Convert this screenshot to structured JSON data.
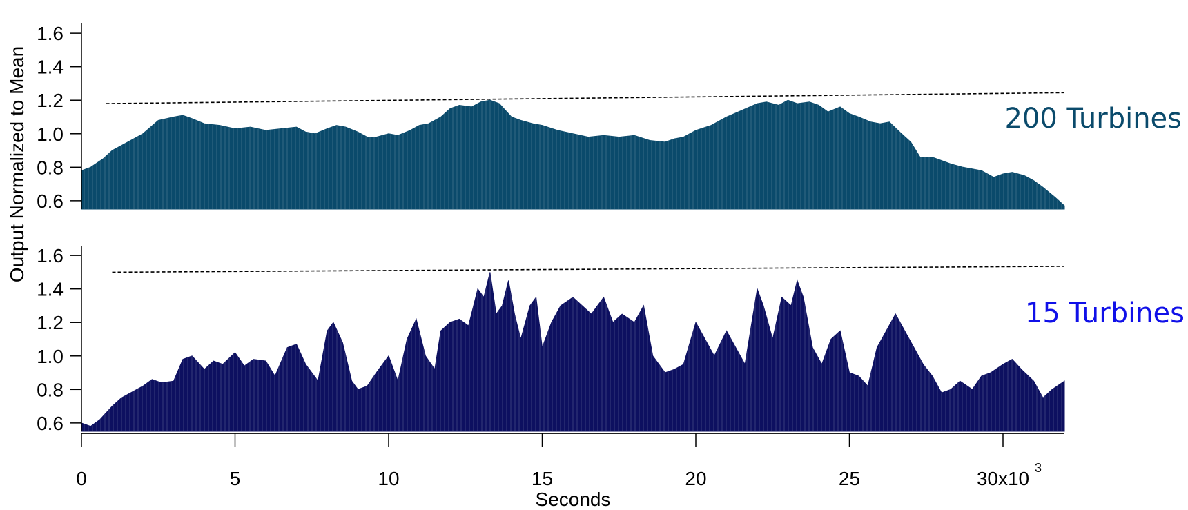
{
  "chart_data": {
    "type": "area",
    "xlabel": "Seconds",
    "ylabel": "Output Normalized to Mean",
    "xlim": [
      0,
      32000
    ],
    "x_ticks": [
      0,
      5000,
      10000,
      15000,
      20000,
      25000,
      30000
    ],
    "x_tick_labels": [
      "0",
      "5",
      "10",
      "15",
      "20",
      "25",
      "30x10"
    ],
    "x_tick_exponent": "3",
    "panels": [
      {
        "label": "200 Turbines",
        "color": "#0a4a6b",
        "label_color": "#0a4a6b",
        "ylim": [
          0.55,
          1.65
        ],
        "y_ticks": [
          0.6,
          0.8,
          1.0,
          1.2,
          1.4,
          1.6
        ],
        "y_tick_labels": [
          "0.6",
          "0.8",
          "1.0",
          "1.2",
          "1.4",
          "1.6"
        ],
        "reference_line": {
          "x": [
            800,
            32000
          ],
          "y": [
            1.18,
            1.245
          ]
        },
        "series": {
          "x": [
            0,
            300,
            700,
            1000,
            1500,
            2000,
            2500,
            3000,
            3300,
            3600,
            4000,
            4500,
            5000,
            5500,
            6000,
            6500,
            7000,
            7300,
            7600,
            8000,
            8300,
            8600,
            9000,
            9300,
            9600,
            10000,
            10300,
            10700,
            11000,
            11300,
            11700,
            12000,
            12300,
            12700,
            13000,
            13300,
            13600,
            14000,
            14300,
            14700,
            15000,
            15500,
            16000,
            16500,
            17000,
            17500,
            18000,
            18500,
            19000,
            19300,
            19600,
            20000,
            20500,
            21000,
            21500,
            22000,
            22300,
            22700,
            23000,
            23300,
            23700,
            24000,
            24300,
            24700,
            25000,
            25300,
            25700,
            26000,
            26300,
            26700,
            27000,
            27300,
            27700,
            28000,
            28300,
            28700,
            29000,
            29300,
            29700,
            30000,
            30300,
            30700,
            31000,
            31300,
            31700,
            32000
          ],
          "y": [
            0.78,
            0.8,
            0.85,
            0.9,
            0.95,
            1.0,
            1.08,
            1.1,
            1.11,
            1.09,
            1.06,
            1.05,
            1.03,
            1.04,
            1.02,
            1.03,
            1.04,
            1.01,
            1.0,
            1.03,
            1.05,
            1.04,
            1.01,
            0.98,
            0.98,
            1.0,
            0.99,
            1.02,
            1.05,
            1.06,
            1.1,
            1.15,
            1.17,
            1.16,
            1.19,
            1.2,
            1.18,
            1.1,
            1.08,
            1.06,
            1.05,
            1.02,
            1.0,
            0.98,
            0.99,
            0.98,
            0.99,
            0.96,
            0.95,
            0.97,
            0.98,
            1.02,
            1.05,
            1.1,
            1.14,
            1.18,
            1.19,
            1.17,
            1.2,
            1.18,
            1.19,
            1.17,
            1.13,
            1.16,
            1.12,
            1.1,
            1.07,
            1.06,
            1.07,
            1.0,
            0.95,
            0.86,
            0.86,
            0.84,
            0.82,
            0.8,
            0.79,
            0.78,
            0.74,
            0.76,
            0.77,
            0.75,
            0.72,
            0.68,
            0.62,
            0.57
          ]
        }
      },
      {
        "label": "15 Turbines",
        "color": "#0d1060",
        "label_color": "#1010e8",
        "ylim": [
          0.55,
          1.65
        ],
        "y_ticks": [
          0.6,
          0.8,
          1.0,
          1.2,
          1.4,
          1.6
        ],
        "y_tick_labels": [
          "0.6",
          "0.8",
          "1.0",
          "1.2",
          "1.4",
          "1.6"
        ],
        "reference_line": {
          "x": [
            1000,
            32000
          ],
          "y": [
            1.5,
            1.535
          ]
        },
        "series": {
          "x": [
            0,
            300,
            600,
            1000,
            1300,
            1600,
            2000,
            2300,
            2600,
            3000,
            3300,
            3600,
            4000,
            4300,
            4600,
            5000,
            5300,
            5600,
            6000,
            6300,
            6700,
            7000,
            7300,
            7700,
            8000,
            8200,
            8500,
            8800,
            9000,
            9300,
            9600,
            10000,
            10300,
            10600,
            10900,
            11200,
            11500,
            11700,
            12000,
            12300,
            12600,
            12900,
            13100,
            13300,
            13500,
            13700,
            13900,
            14100,
            14300,
            14600,
            14800,
            15000,
            15300,
            15600,
            16000,
            16300,
            16600,
            17000,
            17300,
            17600,
            18000,
            18300,
            18600,
            19000,
            19300,
            19600,
            20000,
            20300,
            20600,
            21000,
            21300,
            21600,
            22000,
            22200,
            22500,
            22800,
            23100,
            23300,
            23500,
            23800,
            24100,
            24400,
            24700,
            25000,
            25300,
            25600,
            25900,
            26200,
            26500,
            26800,
            27100,
            27400,
            27700,
            28000,
            28300,
            28600,
            29000,
            29300,
            29600,
            30000,
            30300,
            30600,
            31000,
            31300,
            31600,
            32000
          ],
          "y": [
            0.6,
            0.58,
            0.62,
            0.7,
            0.75,
            0.78,
            0.82,
            0.86,
            0.84,
            0.85,
            0.98,
            1.0,
            0.92,
            0.97,
            0.95,
            1.02,
            0.94,
            0.98,
            0.97,
            0.88,
            1.05,
            1.07,
            0.95,
            0.85,
            1.15,
            1.2,
            1.08,
            0.85,
            0.8,
            0.82,
            0.9,
            1.0,
            0.85,
            1.1,
            1.22,
            1.0,
            0.92,
            1.15,
            1.2,
            1.22,
            1.18,
            1.4,
            1.35,
            1.5,
            1.25,
            1.3,
            1.45,
            1.25,
            1.1,
            1.3,
            1.35,
            1.05,
            1.2,
            1.3,
            1.35,
            1.3,
            1.25,
            1.35,
            1.2,
            1.25,
            1.2,
            1.3,
            1.0,
            0.9,
            0.92,
            0.95,
            1.2,
            1.1,
            1.0,
            1.15,
            1.05,
            0.95,
            1.4,
            1.3,
            1.1,
            1.35,
            1.3,
            1.45,
            1.35,
            1.05,
            0.95,
            1.1,
            1.15,
            0.9,
            0.88,
            0.82,
            1.05,
            1.15,
            1.25,
            1.15,
            1.05,
            0.95,
            0.88,
            0.78,
            0.8,
            0.85,
            0.8,
            0.88,
            0.9,
            0.95,
            0.98,
            0.92,
            0.85,
            0.75,
            0.8,
            0.85
          ]
        }
      }
    ]
  }
}
